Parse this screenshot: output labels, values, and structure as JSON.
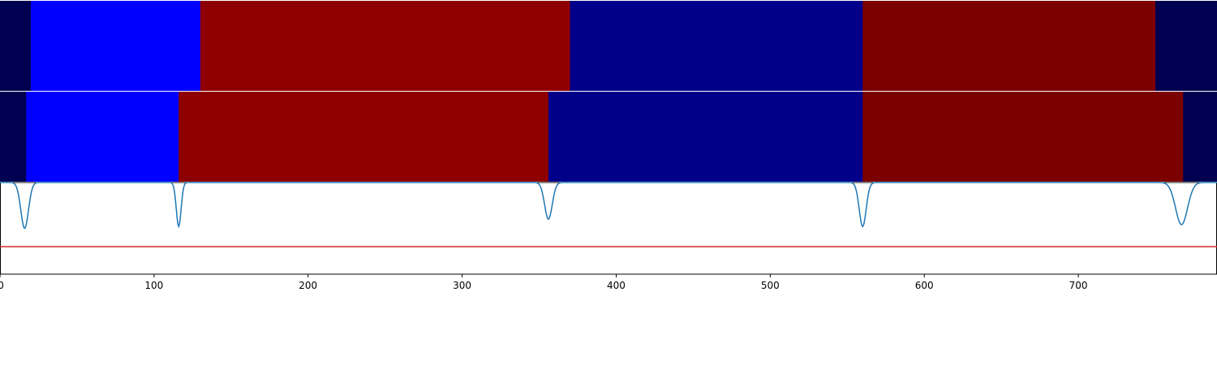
{
  "chart_data": {
    "type": "heatmap",
    "xlim": [
      0,
      790
    ],
    "x_ticks": [
      "0",
      "100",
      "200",
      "300",
      "400",
      "500",
      "600",
      "700"
    ],
    "tracks": [
      {
        "segments": [
          {
            "start": 0,
            "end": 20,
            "color": "#000050"
          },
          {
            "start": 20,
            "end": 130,
            "color": "#0000ff"
          },
          {
            "start": 130,
            "end": 370,
            "color": "#8e0000"
          },
          {
            "start": 370,
            "end": 560,
            "color": "#00008b"
          },
          {
            "start": 560,
            "end": 750,
            "color": "#7b0000"
          },
          {
            "start": 750,
            "end": 790,
            "color": "#000050"
          }
        ]
      },
      {
        "segments": [
          {
            "start": 0,
            "end": 17,
            "color": "#000050"
          },
          {
            "start": 17,
            "end": 116,
            "color": "#0000ff"
          },
          {
            "start": 116,
            "end": 356,
            "color": "#8e0000"
          },
          {
            "start": 356,
            "end": 560,
            "color": "#00008b"
          },
          {
            "start": 560,
            "end": 768,
            "color": "#7b0000"
          },
          {
            "start": 768,
            "end": 790,
            "color": "#000050"
          }
        ]
      }
    ],
    "line_panel": {
      "ylim": [
        0,
        1
      ],
      "baseline": 1.0,
      "threshold": 0.3,
      "threshold_color": "#d62728",
      "line_color": "#1f77b4",
      "dips": [
        {
          "x": 16,
          "y": 0.5,
          "width": 3.5
        },
        {
          "x": 116,
          "y": 0.52,
          "width": 2.2
        },
        {
          "x": 356,
          "y": 0.6,
          "width": 3.5
        },
        {
          "x": 560,
          "y": 0.52,
          "width": 3.2
        },
        {
          "x": 767,
          "y": 0.54,
          "width": 5.5
        }
      ]
    }
  }
}
